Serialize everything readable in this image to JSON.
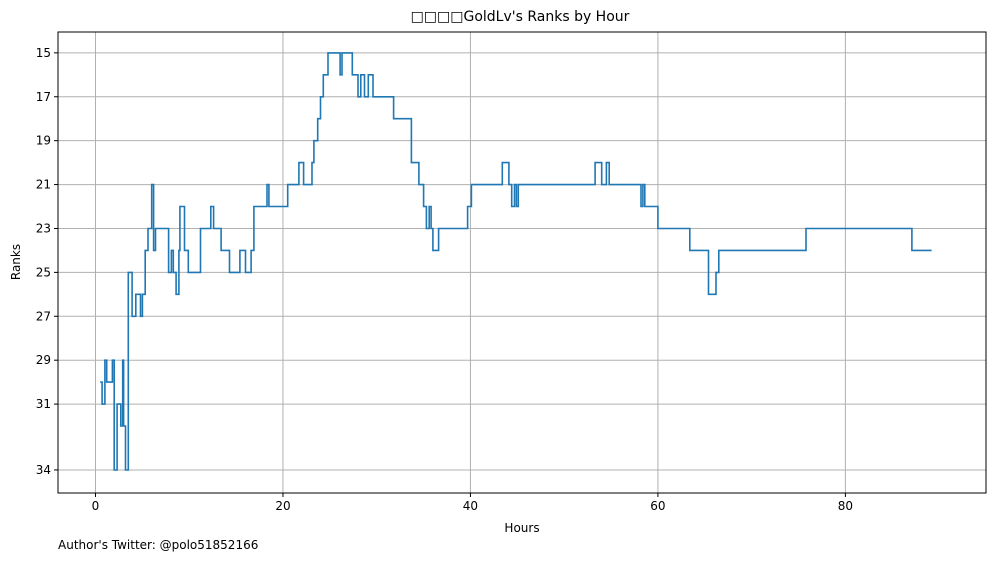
{
  "chart_data": {
    "type": "line",
    "step": true,
    "title": "□□□□GoldLv's Ranks by Hour",
    "xlabel": "Hours",
    "ylabel": "Ranks",
    "xlim": [
      -4,
      95
    ],
    "ylim": [
      35.05,
      14.05
    ],
    "y_inverted": true,
    "grid": true,
    "xticks": [
      0,
      20,
      40,
      60,
      80
    ],
    "yticks": [
      15,
      17,
      19,
      21,
      23,
      25,
      27,
      29,
      31,
      34
    ],
    "color": "#1f77b4",
    "series": [
      {
        "points": [
          [
            0.5,
            30
          ],
          [
            0.7,
            31
          ],
          [
            1.0,
            29
          ],
          [
            1.2,
            30
          ],
          [
            1.8,
            29
          ],
          [
            2.0,
            34
          ],
          [
            2.3,
            31
          ],
          [
            2.7,
            32
          ],
          [
            2.9,
            29
          ],
          [
            3.0,
            32
          ],
          [
            3.2,
            34
          ],
          [
            3.5,
            25
          ],
          [
            3.9,
            27
          ],
          [
            4.3,
            26
          ],
          [
            4.8,
            27
          ],
          [
            5.0,
            26
          ],
          [
            5.3,
            24
          ],
          [
            5.6,
            23
          ],
          [
            6.0,
            21
          ],
          [
            6.2,
            24
          ],
          [
            6.4,
            23
          ],
          [
            7.8,
            25
          ],
          [
            8.1,
            24
          ],
          [
            8.3,
            25
          ],
          [
            8.6,
            26
          ],
          [
            8.9,
            24
          ],
          [
            9.0,
            22
          ],
          [
            9.5,
            24
          ],
          [
            9.9,
            25
          ],
          [
            11.2,
            23
          ],
          [
            12.3,
            22
          ],
          [
            12.6,
            23
          ],
          [
            13.4,
            24
          ],
          [
            14.3,
            25
          ],
          [
            15.4,
            24
          ],
          [
            16.0,
            25
          ],
          [
            16.6,
            24
          ],
          [
            16.9,
            22
          ],
          [
            18.3,
            21
          ],
          [
            18.5,
            22
          ],
          [
            20.5,
            21
          ],
          [
            21.7,
            20
          ],
          [
            22.2,
            21
          ],
          [
            23.1,
            20
          ],
          [
            23.3,
            19
          ],
          [
            23.7,
            18
          ],
          [
            24.0,
            17
          ],
          [
            24.3,
            16
          ],
          [
            24.8,
            15
          ],
          [
            26.1,
            16
          ],
          [
            26.3,
            15
          ],
          [
            27.4,
            16
          ],
          [
            28.0,
            17
          ],
          [
            28.3,
            16
          ],
          [
            28.7,
            17
          ],
          [
            29.1,
            16
          ],
          [
            29.6,
            17
          ],
          [
            31.8,
            18
          ],
          [
            33.7,
            20
          ],
          [
            34.5,
            21
          ],
          [
            35.0,
            22
          ],
          [
            35.3,
            23
          ],
          [
            35.6,
            22
          ],
          [
            35.8,
            23
          ],
          [
            36.0,
            24
          ],
          [
            36.6,
            23
          ],
          [
            39.7,
            22
          ],
          [
            40.1,
            21
          ],
          [
            43.4,
            20
          ],
          [
            44.1,
            21
          ],
          [
            44.4,
            22
          ],
          [
            44.7,
            21
          ],
          [
            44.9,
            22
          ],
          [
            45.1,
            21
          ],
          [
            53.3,
            20
          ],
          [
            54.0,
            21
          ],
          [
            54.5,
            20
          ],
          [
            54.8,
            21
          ],
          [
            58.2,
            22
          ],
          [
            58.4,
            21
          ],
          [
            58.6,
            22
          ],
          [
            60.0,
            23
          ],
          [
            63.4,
            24
          ],
          [
            65.4,
            26
          ],
          [
            66.2,
            25
          ],
          [
            66.5,
            24
          ],
          [
            75.8,
            23
          ],
          [
            87.1,
            24
          ],
          [
            89.2,
            24
          ]
        ]
      }
    ]
  },
  "footer": {
    "credit": "Author's Twitter: @polo51852166"
  }
}
